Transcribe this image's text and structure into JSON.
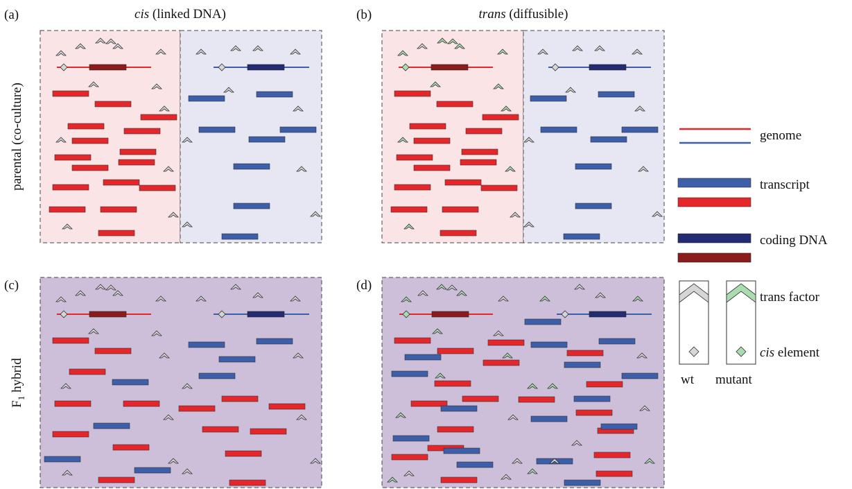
{
  "panels": {
    "a": {
      "label": "(a)"
    },
    "b": {
      "label": "(b)"
    },
    "c": {
      "label": "(c)"
    },
    "d": {
      "label": "(d)"
    }
  },
  "columns": [
    {
      "italic": "cis",
      "rest": "(linked DNA)"
    },
    {
      "italic": "trans",
      "rest": "(diffusible)"
    }
  ],
  "rows": [
    {
      "label": "parental (co-culture)"
    },
    {
      "main": "F",
      "sub": "1",
      "rest": "hybrid"
    }
  ],
  "legend": {
    "genome": "genome",
    "transcript": "transcript",
    "coding": "coding DNA",
    "trans_factor": "trans factor",
    "cis_element": {
      "italic": "cis",
      "rest": "element"
    },
    "wt": "wt",
    "mutant": "mutant"
  }
}
